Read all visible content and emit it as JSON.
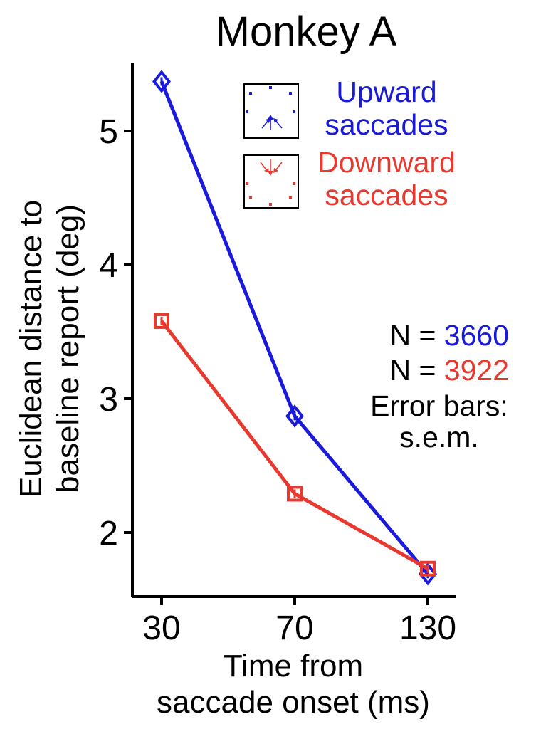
{
  "chart_data": {
    "type": "line",
    "title": "Monkey A",
    "xlabel_lines": [
      "Time from",
      "saccade onset (ms)"
    ],
    "ylabel_lines": [
      "Euclidean distance to",
      "baseline report (deg)"
    ],
    "x_categories": [
      "30",
      "70",
      "130"
    ],
    "y_ticks": [
      2,
      3,
      4,
      5
    ],
    "y_tick_labels": [
      "2",
      "3",
      "4",
      "5"
    ],
    "ylim": [
      1.55,
      5.5
    ],
    "grid": false,
    "legend_position": "top-right",
    "series": [
      {
        "name_lines": [
          "Upward",
          "saccades"
        ],
        "color": "#1a1adb",
        "marker": "diamond",
        "inset_icon": "upward-saccade-icon",
        "values": [
          5.37,
          2.87,
          1.69
        ],
        "n_label": "N = ",
        "n_value": "3660"
      },
      {
        "name_lines": [
          "Downward",
          "saccades"
        ],
        "color": "#e8392f",
        "marker": "square",
        "inset_icon": "downward-saccade-icon",
        "values": [
          3.58,
          2.29,
          1.73
        ],
        "n_label": "N = ",
        "n_value": "3922"
      }
    ],
    "annotation_lines": [
      "Error bars:",
      "s.e.m."
    ]
  }
}
